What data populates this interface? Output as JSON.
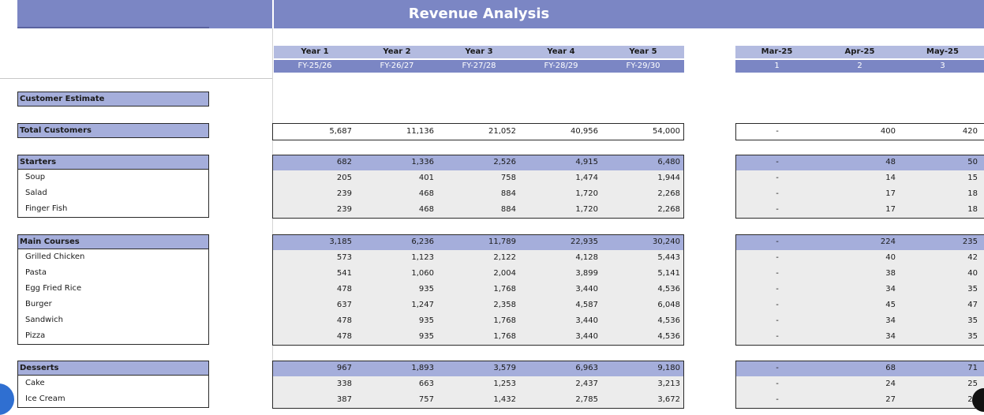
{
  "title": "Revenue Analysis",
  "colors": {
    "header_blue": "#7b86c4",
    "header_light": "#b3bbe0",
    "row_head": "#a5aedb",
    "cell_bg": "#ececec"
  },
  "years": [
    {
      "label": "Year 1",
      "fy": "FY-25/26"
    },
    {
      "label": "Year 2",
      "fy": "FY-26/27"
    },
    {
      "label": "Year 3",
      "fy": "FY-27/28"
    },
    {
      "label": "Year 4",
      "fy": "FY-28/29"
    },
    {
      "label": "Year 5",
      "fy": "FY-29/30"
    }
  ],
  "months": [
    {
      "label": "Mar-25",
      "num": "1"
    },
    {
      "label": "Apr-25",
      "num": "2"
    },
    {
      "label": "May-25",
      "num": "3"
    }
  ],
  "customer_estimate_label": "Customer Estimate",
  "total_customers": {
    "label": "Total Customers",
    "years": [
      "5,687",
      "11,136",
      "21,052",
      "40,956",
      "54,000"
    ],
    "months": [
      "-",
      "400",
      "420"
    ]
  },
  "sections": [
    {
      "name": "Starters",
      "years": [
        "682",
        "1,336",
        "2,526",
        "4,915",
        "6,480"
      ],
      "months": [
        "-",
        "48",
        "50"
      ],
      "items": [
        {
          "label": "Soup",
          "years": [
            "205",
            "401",
            "758",
            "1,474",
            "1,944"
          ],
          "months": [
            "-",
            "14",
            "15"
          ]
        },
        {
          "label": "Salad",
          "years": [
            "239",
            "468",
            "884",
            "1,720",
            "2,268"
          ],
          "months": [
            "-",
            "17",
            "18"
          ]
        },
        {
          "label": "Finger Fish",
          "years": [
            "239",
            "468",
            "884",
            "1,720",
            "2,268"
          ],
          "months": [
            "-",
            "17",
            "18"
          ]
        }
      ]
    },
    {
      "name": "Main Courses",
      "years": [
        "3,185",
        "6,236",
        "11,789",
        "22,935",
        "30,240"
      ],
      "months": [
        "-",
        "224",
        "235"
      ],
      "items": [
        {
          "label": "Grilled Chicken",
          "years": [
            "573",
            "1,123",
            "2,122",
            "4,128",
            "5,443"
          ],
          "months": [
            "-",
            "40",
            "42"
          ]
        },
        {
          "label": "Pasta",
          "years": [
            "541",
            "1,060",
            "2,004",
            "3,899",
            "5,141"
          ],
          "months": [
            "-",
            "38",
            "40"
          ]
        },
        {
          "label": "Egg Fried Rice",
          "years": [
            "478",
            "935",
            "1,768",
            "3,440",
            "4,536"
          ],
          "months": [
            "-",
            "34",
            "35"
          ]
        },
        {
          "label": "Burger",
          "years": [
            "637",
            "1,247",
            "2,358",
            "4,587",
            "6,048"
          ],
          "months": [
            "-",
            "45",
            "47"
          ]
        },
        {
          "label": "Sandwich",
          "years": [
            "478",
            "935",
            "1,768",
            "3,440",
            "4,536"
          ],
          "months": [
            "-",
            "34",
            "35"
          ]
        },
        {
          "label": "Pizza",
          "years": [
            "478",
            "935",
            "1,768",
            "3,440",
            "4,536"
          ],
          "months": [
            "-",
            "34",
            "35"
          ]
        }
      ]
    },
    {
      "name": "Desserts",
      "years": [
        "967",
        "1,893",
        "3,579",
        "6,963",
        "9,180"
      ],
      "months": [
        "-",
        "68",
        "71"
      ],
      "items": [
        {
          "label": "Cake",
          "years": [
            "338",
            "663",
            "1,253",
            "2,437",
            "3,213"
          ],
          "months": [
            "-",
            "24",
            "25"
          ]
        },
        {
          "label": "Ice Cream",
          "years": [
            "387",
            "757",
            "1,432",
            "2,785",
            "3,672"
          ],
          "months": [
            "-",
            "27",
            "29"
          ]
        }
      ]
    }
  ]
}
